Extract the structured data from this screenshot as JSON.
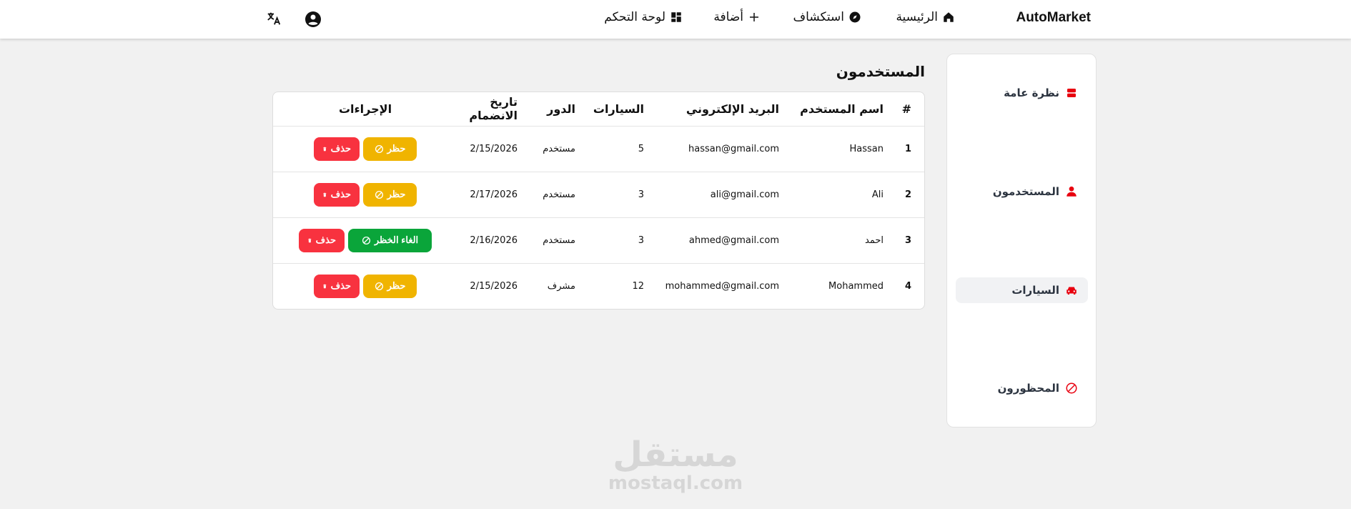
{
  "nav": {
    "brand": "AutoMarket",
    "items": [
      {
        "label": "الرئيسية",
        "icon": "home-icon"
      },
      {
        "label": "استكشاف",
        "icon": "compass-icon"
      },
      {
        "label": "أضافة",
        "icon": "plus-icon"
      },
      {
        "label": "لوحة التحكم",
        "icon": "dashboard-icon"
      }
    ],
    "profile_icon": "account-circle-icon",
    "translate_icon": "translate-icon"
  },
  "sidebar": {
    "items": [
      {
        "label": "نظرة عامة",
        "icon": "overview-icon"
      },
      {
        "label": "المستخدمون",
        "icon": "user-icon"
      },
      {
        "label": "السيارات",
        "icon": "car-icon",
        "active": true
      },
      {
        "label": "المحظورون",
        "icon": "block-icon"
      }
    ]
  },
  "page": {
    "title": "المستخدمون"
  },
  "table": {
    "headers": [
      "#",
      "اسم المستخدم",
      "البريد الإلكتروني",
      "السيارات",
      "الدور",
      "تاريخ الانضمام",
      "الإجراءات"
    ],
    "rows": [
      {
        "id": "1",
        "name": "Hassan",
        "email": "hassan@gmail.com",
        "cars": "5",
        "role": "مستخدم",
        "joined": "2/15/2026",
        "toggle": "حظر",
        "toggle_type": "ban",
        "delete": "حذف"
      },
      {
        "id": "2",
        "name": "Ali",
        "email": "ali@gmail.com",
        "cars": "3",
        "role": "مستخدم",
        "joined": "2/17/2026",
        "toggle": "حظر",
        "toggle_type": "ban",
        "delete": "حذف"
      },
      {
        "id": "3",
        "name": "احمد",
        "email": "ahmed@gmail.com",
        "cars": "3",
        "role": "مستخدم",
        "joined": "2/16/2026",
        "toggle": "الغاء الخظر",
        "toggle_type": "unban",
        "delete": "حذف"
      },
      {
        "id": "4",
        "name": "Mohammed",
        "email": "mohammed@gmail.com",
        "cars": "12",
        "role": "مشرف",
        "joined": "2/15/2026",
        "toggle": "حظر",
        "toggle_type": "ban",
        "delete": "حذف"
      }
    ]
  },
  "colors": {
    "accent": "#e8000f",
    "ban": "#f0b400",
    "unban": "#0aa53a",
    "delete": "#f8323f"
  },
  "watermark": {
    "arabic": "مستقل",
    "latin": "mostaql.com"
  }
}
